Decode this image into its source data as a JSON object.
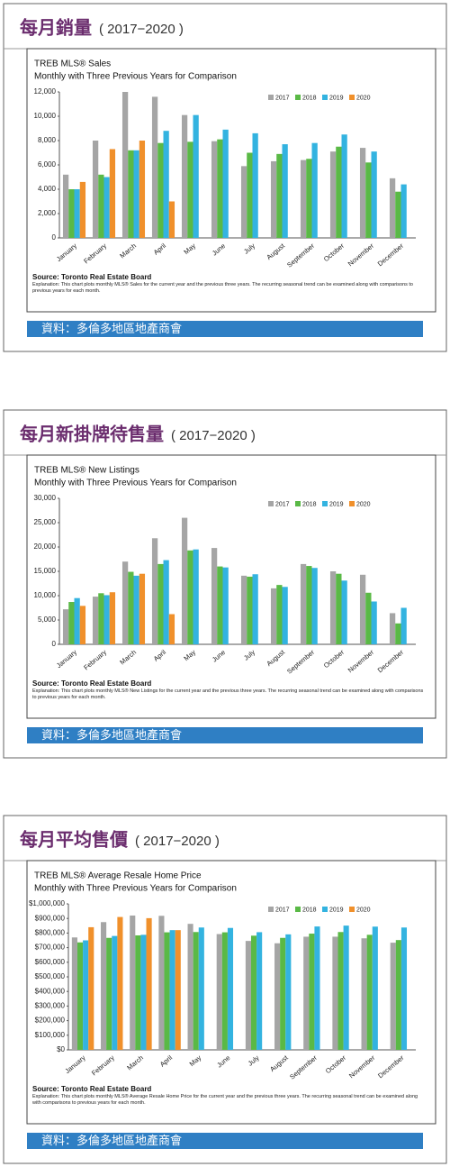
{
  "chart_data": [
    {
      "type": "bar",
      "heading": "每月銷量",
      "period": "( 2017−2020 )",
      "title": "TREB MLS® Sales",
      "subtitle": "Monthly with Three Previous Years for Comparison",
      "categories": [
        "January",
        "February",
        "March",
        "April",
        "May",
        "June",
        "July",
        "August",
        "September",
        "October",
        "November",
        "December"
      ],
      "series": [
        {
          "name": "2017",
          "color": "#a5a5a5",
          "values": [
            5200,
            8000,
            12000,
            11600,
            10100,
            7950,
            5900,
            6300,
            6400,
            7100,
            7400,
            4900
          ]
        },
        {
          "name": "2018",
          "color": "#5ab946",
          "values": [
            4000,
            5200,
            7200,
            7800,
            7900,
            8100,
            7000,
            6900,
            6500,
            7500,
            6200,
            3800
          ]
        },
        {
          "name": "2019",
          "color": "#33b3e0",
          "values": [
            4000,
            5000,
            7200,
            8800,
            10100,
            8900,
            8600,
            7700,
            7800,
            8500,
            7100,
            4400
          ]
        },
        {
          "name": "2020",
          "color": "#f0902b",
          "values": [
            4600,
            7300,
            8000,
            3000,
            null,
            null,
            null,
            null,
            null,
            null,
            null,
            null
          ]
        }
      ],
      "ylim": [
        0,
        12000
      ],
      "yticks": [
        0,
        {
          "value": 2000,
          "label": "2,000"
        },
        {
          "value": 4000,
          "label": "4,000"
        },
        {
          "value": 6000,
          "label": "6,000"
        },
        {
          "value": 8000,
          "label": "8,000"
        },
        {
          "value": 10000,
          "label": "10,000"
        },
        {
          "value": 12000,
          "label": "12,000"
        }
      ],
      "source": "Source: Toronto Real Estate Board",
      "explanation": "Explanation: This chart plots monthly MLS® Sales for the current year and the previous three years. The recurring seasonal trend can be examined along with comparisons to previous years for each month.",
      "banner": "資料：多倫多地區地產商會"
    },
    {
      "type": "bar",
      "heading": "每月新掛牌待售量",
      "period": "( 2017−2020 )",
      "title": "TREB MLS® New Listings",
      "subtitle": "Monthly with Three Previous Years for Comparison",
      "categories": [
        "January",
        "February",
        "March",
        "April",
        "May",
        "June",
        "July",
        "August",
        "September",
        "October",
        "November",
        "December"
      ],
      "series": [
        {
          "name": "2017",
          "color": "#a5a5a5",
          "values": [
            7200,
            9800,
            17000,
            21800,
            26000,
            19800,
            14100,
            11500,
            16500,
            15000,
            14300,
            6400
          ]
        },
        {
          "name": "2018",
          "color": "#5ab946",
          "values": [
            8700,
            10500,
            14900,
            16500,
            19300,
            16000,
            13900,
            12200,
            16100,
            14500,
            10600,
            4300
          ]
        },
        {
          "name": "2019",
          "color": "#33b3e0",
          "values": [
            9500,
            10100,
            14100,
            17300,
            19500,
            15800,
            14400,
            11800,
            15700,
            13100,
            8800,
            7500
          ]
        },
        {
          "name": "2020",
          "color": "#f0902b",
          "values": [
            7900,
            10700,
            14500,
            6200,
            null,
            null,
            null,
            null,
            null,
            null,
            null,
            null
          ]
        }
      ],
      "ylim": [
        0,
        30000
      ],
      "yticks": [
        0,
        {
          "value": 5000,
          "label": "5,000"
        },
        {
          "value": 10000,
          "label": "10,000"
        },
        {
          "value": 15000,
          "label": "15,000"
        },
        {
          "value": 20000,
          "label": "20,000"
        },
        {
          "value": 25000,
          "label": "25,000"
        },
        {
          "value": 30000,
          "label": "30,000"
        }
      ],
      "source": "Source: Toronto Real Estate Board",
      "explanation": "Explanation: This chart plots monthly MLS® New Listings for the current year and the previous three years. The recurring seasonal trend can be examined along with comparisons to previous years for each month.",
      "banner": "資料：多倫多地區地產商會"
    },
    {
      "type": "bar",
      "heading": "每月平均售價",
      "period": "( 2017−2020 )",
      "title": "TREB MLS® Average Resale Home Price",
      "subtitle": "Monthly with Three Previous Years for Comparison",
      "categories": [
        "January",
        "February",
        "March",
        "April",
        "May",
        "June",
        "July",
        "August",
        "September",
        "October",
        "November",
        "December"
      ],
      "series": [
        {
          "name": "2017",
          "color": "#a5a5a5",
          "values": [
            770000,
            875000,
            920000,
            918000,
            863000,
            793000,
            746000,
            730000,
            775000,
            775000,
            764000,
            734000
          ]
        },
        {
          "name": "2018",
          "color": "#5ab946",
          "values": [
            736000,
            767000,
            784000,
            805000,
            807000,
            805000,
            782000,
            767000,
            796000,
            807000,
            788000,
            752000
          ]
        },
        {
          "name": "2019",
          "color": "#33b3e0",
          "values": [
            750000,
            780000,
            788000,
            820000,
            838000,
            835000,
            806000,
            791000,
            845000,
            851000,
            844000,
            838000
          ]
        },
        {
          "name": "2020",
          "color": "#f0902b",
          "values": [
            840000,
            910000,
            902000,
            820000,
            null,
            null,
            null,
            null,
            null,
            null,
            null,
            null
          ]
        }
      ],
      "ylim": [
        0,
        1000000
      ],
      "yticks": [
        {
          "value": 0,
          "label": "$0"
        },
        {
          "value": 100000,
          "label": "$100,000"
        },
        {
          "value": 200000,
          "label": "$200,000"
        },
        {
          "value": 300000,
          "label": "$300,000"
        },
        {
          "value": 400000,
          "label": "$400,000"
        },
        {
          "value": 500000,
          "label": "$500,000"
        },
        {
          "value": 600000,
          "label": "$600,000"
        },
        {
          "value": 700000,
          "label": "$700,000"
        },
        {
          "value": 800000,
          "label": "$800,000"
        },
        {
          "value": 900000,
          "label": "$900,000"
        },
        {
          "value": 1000000,
          "label": "$1,000,000"
        }
      ],
      "source": "Source: Toronto Real Estate Board",
      "explanation": "Explanation: This chart plots monthly MLS® Average Resale Home Price for the current year and the previous three years. The recurring seasonal trend can be examined along with comparisons to previous years for each month.",
      "banner": "資料：多倫多地區地產商會"
    }
  ]
}
